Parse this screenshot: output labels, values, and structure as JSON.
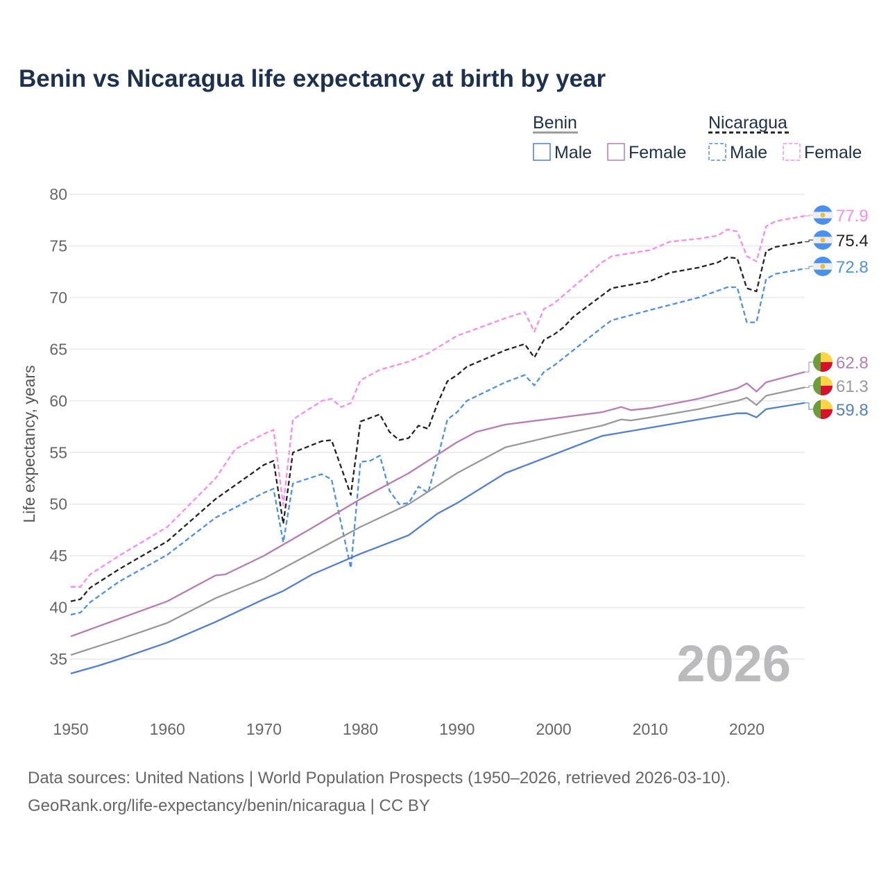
{
  "title": "Benin vs Nicaragua life expectancy at birth by year",
  "sources": [
    "Data sources: United Nations | World Population Prospects (1950–2026, retrieved 2026-03-10).",
    "GeoRank.org/life-expectancy/benin/nicaragua | CC BY"
  ],
  "chart_data": {
    "type": "line",
    "title": "Benin vs Nicaragua life expectancy at birth by year",
    "xlabel": "",
    "ylabel": "Life expectancy, years",
    "xlim": [
      1950,
      2026
    ],
    "ylim": [
      32,
      80
    ],
    "x_ticks": [
      "1950",
      "1960",
      "1970",
      "1980",
      "1990",
      "2000",
      "2010",
      "2020"
    ],
    "y_ticks": [
      "35",
      "40",
      "45",
      "50",
      "55",
      "60",
      "65",
      "70",
      "75",
      "80"
    ],
    "grid": true,
    "year_watermark": "2026",
    "legend": {
      "placement": "top-right",
      "groups": [
        {
          "name": "Benin",
          "items": [
            "Male",
            "Female"
          ]
        },
        {
          "name": "Nicaragua",
          "items": [
            "Male",
            "Female"
          ]
        }
      ]
    },
    "series": [
      {
        "name": "Nicaragua Female",
        "country": "Nicaragua",
        "color": "#ff88f0",
        "dashed": true,
        "end_label": "77.9",
        "flag": "nicaragua",
        "points": [
          [
            1950,
            42.0
          ],
          [
            1951,
            42.0
          ],
          [
            1952,
            43.2
          ],
          [
            1955,
            45.0
          ],
          [
            1960,
            47.8
          ],
          [
            1965,
            52.5
          ],
          [
            1967,
            55.3
          ],
          [
            1970,
            56.8
          ],
          [
            1971,
            57.2
          ],
          [
            1972,
            49.9
          ],
          [
            1973,
            58.2
          ],
          [
            1976,
            60.0
          ],
          [
            1977,
            60.2
          ],
          [
            1978,
            59.4
          ],
          [
            1979,
            59.8
          ],
          [
            1980,
            62.0
          ],
          [
            1982,
            63.0
          ],
          [
            1985,
            63.8
          ],
          [
            1987,
            64.6
          ],
          [
            1990,
            66.3
          ],
          [
            1995,
            68.0
          ],
          [
            1997,
            68.6
          ],
          [
            1998,
            66.7
          ],
          [
            1999,
            68.9
          ],
          [
            2000,
            69.4
          ],
          [
            2005,
            73.4
          ],
          [
            2006,
            74.0
          ],
          [
            2010,
            74.6
          ],
          [
            2012,
            75.4
          ],
          [
            2015,
            75.7
          ],
          [
            2017,
            76.0
          ],
          [
            2018,
            76.6
          ],
          [
            2019,
            76.4
          ],
          [
            2020,
            74.0
          ],
          [
            2021,
            73.5
          ],
          [
            2022,
            76.9
          ],
          [
            2023,
            77.4
          ],
          [
            2026,
            77.9
          ]
        ]
      },
      {
        "name": "Nicaragua",
        "country": "Nicaragua",
        "color": "#222222",
        "dashed": true,
        "end_label": "75.4",
        "flag": "nicaragua",
        "points": [
          [
            1950,
            40.6
          ],
          [
            1951,
            40.8
          ],
          [
            1952,
            41.9
          ],
          [
            1955,
            43.7
          ],
          [
            1960,
            46.4
          ],
          [
            1965,
            50.5
          ],
          [
            1970,
            53.8
          ],
          [
            1971,
            54.2
          ],
          [
            1972,
            48.1
          ],
          [
            1973,
            55.0
          ],
          [
            1976,
            56.1
          ],
          [
            1977,
            56.2
          ],
          [
            1979,
            50.9
          ],
          [
            1980,
            58.0
          ],
          [
            1982,
            58.7
          ],
          [
            1983,
            57.0
          ],
          [
            1984,
            56.2
          ],
          [
            1985,
            56.4
          ],
          [
            1986,
            57.6
          ],
          [
            1987,
            57.3
          ],
          [
            1988,
            59.8
          ],
          [
            1989,
            61.9
          ],
          [
            1990,
            62.5
          ],
          [
            1991,
            63.3
          ],
          [
            1995,
            64.9
          ],
          [
            1997,
            65.5
          ],
          [
            1998,
            64.2
          ],
          [
            1999,
            65.9
          ],
          [
            2000,
            66.4
          ],
          [
            2001,
            67.1
          ],
          [
            2002,
            68.1
          ],
          [
            2005,
            70.2
          ],
          [
            2006,
            70.9
          ],
          [
            2010,
            71.6
          ],
          [
            2012,
            72.4
          ],
          [
            2015,
            72.9
          ],
          [
            2017,
            73.4
          ],
          [
            2018,
            73.9
          ],
          [
            2019,
            73.8
          ],
          [
            2020,
            70.9
          ],
          [
            2021,
            70.6
          ],
          [
            2022,
            74.5
          ],
          [
            2023,
            74.9
          ],
          [
            2026,
            75.4
          ]
        ]
      },
      {
        "name": "Nicaragua Male",
        "country": "Nicaragua",
        "color": "#4a90f0",
        "dashed": true,
        "end_label": "72.8",
        "flag": "nicaragua",
        "points": [
          [
            1950,
            39.3
          ],
          [
            1951,
            39.5
          ],
          [
            1952,
            40.5
          ],
          [
            1955,
            42.5
          ],
          [
            1960,
            45.1
          ],
          [
            1965,
            48.7
          ],
          [
            1970,
            51.1
          ],
          [
            1971,
            51.5
          ],
          [
            1972,
            46.3
          ],
          [
            1973,
            52.0
          ],
          [
            1976,
            52.9
          ],
          [
            1977,
            52.4
          ],
          [
            1979,
            43.8
          ],
          [
            1980,
            54.1
          ],
          [
            1981,
            54.2
          ],
          [
            1982,
            54.7
          ],
          [
            1983,
            51.3
          ],
          [
            1984,
            50.0
          ],
          [
            1985,
            50.1
          ],
          [
            1986,
            51.7
          ],
          [
            1987,
            51.1
          ],
          [
            1988,
            54.5
          ],
          [
            1989,
            58.2
          ],
          [
            1990,
            58.9
          ],
          [
            1991,
            60.0
          ],
          [
            1995,
            61.8
          ],
          [
            1997,
            62.5
          ],
          [
            1998,
            61.5
          ],
          [
            1999,
            62.8
          ],
          [
            2000,
            63.4
          ],
          [
            2005,
            67.1
          ],
          [
            2006,
            67.8
          ],
          [
            2010,
            68.8
          ],
          [
            2015,
            70.0
          ],
          [
            2018,
            71.0
          ],
          [
            2019,
            71.0
          ],
          [
            2020,
            67.6
          ],
          [
            2021,
            67.6
          ],
          [
            2022,
            71.8
          ],
          [
            2023,
            72.3
          ],
          [
            2026,
            72.8
          ]
        ]
      },
      {
        "name": "Benin Female",
        "country": "Benin",
        "color": "#b87ab8",
        "dashed": false,
        "end_label": "62.8",
        "flag": "benin",
        "points": [
          [
            1950,
            37.2
          ],
          [
            1955,
            38.9
          ],
          [
            1960,
            40.6
          ],
          [
            1965,
            43.1
          ],
          [
            1966,
            43.2
          ],
          [
            1970,
            45.0
          ],
          [
            1975,
            47.7
          ],
          [
            1980,
            50.5
          ],
          [
            1985,
            53.0
          ],
          [
            1990,
            56.0
          ],
          [
            1992,
            57.0
          ],
          [
            1995,
            57.7
          ],
          [
            2000,
            58.3
          ],
          [
            2005,
            58.9
          ],
          [
            2007,
            59.4
          ],
          [
            2008,
            59.1
          ],
          [
            2010,
            59.3
          ],
          [
            2015,
            60.2
          ],
          [
            2019,
            61.2
          ],
          [
            2020,
            61.7
          ],
          [
            2021,
            60.9
          ],
          [
            2022,
            61.8
          ],
          [
            2026,
            62.8
          ]
        ]
      },
      {
        "name": "Benin",
        "country": "Benin",
        "color": "#999999",
        "dashed": false,
        "end_label": "61.3",
        "flag": "benin",
        "points": [
          [
            1950,
            35.4
          ],
          [
            1955,
            36.9
          ],
          [
            1960,
            38.5
          ],
          [
            1965,
            40.9
          ],
          [
            1970,
            42.8
          ],
          [
            1975,
            45.3
          ],
          [
            1980,
            47.8
          ],
          [
            1985,
            50.0
          ],
          [
            1990,
            53.0
          ],
          [
            1995,
            55.5
          ],
          [
            2000,
            56.6
          ],
          [
            2005,
            57.6
          ],
          [
            2007,
            58.2
          ],
          [
            2008,
            58.1
          ],
          [
            2010,
            58.4
          ],
          [
            2015,
            59.2
          ],
          [
            2019,
            60.0
          ],
          [
            2020,
            60.3
          ],
          [
            2021,
            59.6
          ],
          [
            2022,
            60.5
          ],
          [
            2026,
            61.3
          ]
        ]
      },
      {
        "name": "Benin Male",
        "country": "Benin",
        "color": "#4f7fd0",
        "dashed": false,
        "end_label": "59.8",
        "flag": "benin",
        "points": [
          [
            1950,
            33.6
          ],
          [
            1953,
            34.4
          ],
          [
            1955,
            35.0
          ],
          [
            1960,
            36.6
          ],
          [
            1965,
            38.6
          ],
          [
            1970,
            40.8
          ],
          [
            1972,
            41.6
          ],
          [
            1975,
            43.2
          ],
          [
            1980,
            45.2
          ],
          [
            1985,
            47.0
          ],
          [
            1988,
            49.1
          ],
          [
            1990,
            50.1
          ],
          [
            1995,
            53.0
          ],
          [
            2000,
            54.8
          ],
          [
            2005,
            56.6
          ],
          [
            2010,
            57.4
          ],
          [
            2015,
            58.2
          ],
          [
            2019,
            58.8
          ],
          [
            2020,
            58.8
          ],
          [
            2021,
            58.4
          ],
          [
            2022,
            59.2
          ],
          [
            2026,
            59.8
          ]
        ]
      }
    ]
  }
}
